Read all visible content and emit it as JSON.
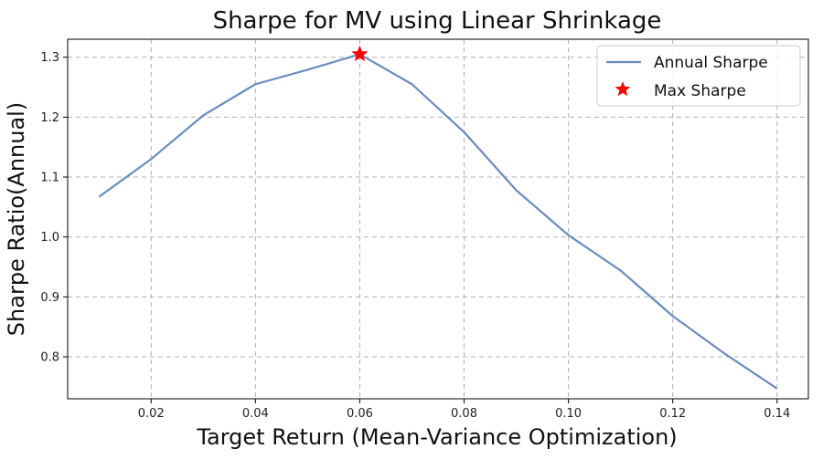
{
  "chart_data": {
    "type": "line",
    "title": "Sharpe for MV using Linear Shrinkage",
    "xlabel": "Target Return (Mean-Variance Optimization)",
    "ylabel": "Sharpe Ratio(Annual)",
    "xlim": [
      0.004,
      0.146
    ],
    "ylim": [
      0.73,
      1.33
    ],
    "x_ticks": [
      "0.02",
      "0.04",
      "0.06",
      "0.08",
      "0.10",
      "0.12",
      "0.14"
    ],
    "x_tick_values": [
      0.02,
      0.04,
      0.06,
      0.08,
      0.1,
      0.12,
      0.14
    ],
    "y_ticks": [
      "0.8",
      "0.9",
      "1.0",
      "1.1",
      "1.2",
      "1.3"
    ],
    "y_tick_values": [
      0.8,
      0.9,
      1.0,
      1.1,
      1.2,
      1.3
    ],
    "grid": true,
    "legend_position": "top-right",
    "series": [
      {
        "name": "Annual Sharpe",
        "color": "#6a8bbf",
        "x": [
          0.01,
          0.02,
          0.03,
          0.04,
          0.05,
          0.06,
          0.07,
          0.08,
          0.09,
          0.1,
          0.11,
          0.12,
          0.13,
          0.14
        ],
        "y": [
          1.067,
          1.13,
          1.203,
          1.255,
          1.279,
          1.305,
          1.255,
          1.175,
          1.078,
          1.003,
          0.944,
          0.868,
          0.805,
          0.747
        ]
      }
    ],
    "markers": [
      {
        "name": "Max Sharpe",
        "color": "#ff0000",
        "marker": "star",
        "x": 0.06,
        "y": 1.305
      }
    ]
  }
}
